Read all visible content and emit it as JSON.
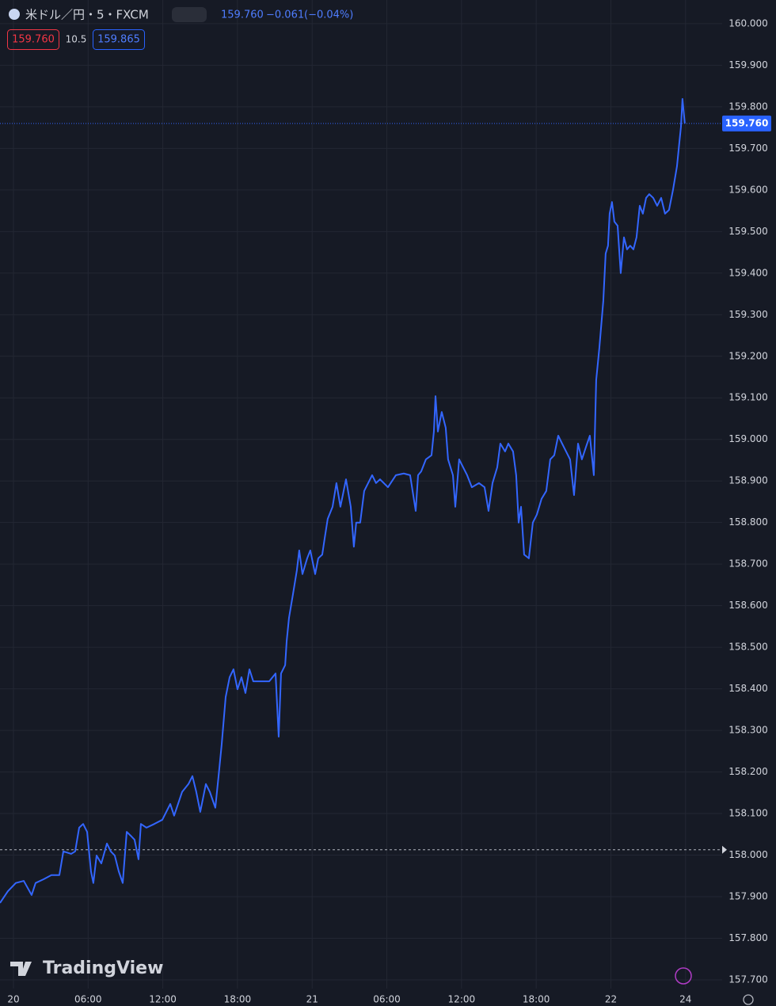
{
  "chart_data": {
    "type": "line",
    "symbol": "米ドル／円・5・FXCM",
    "last": "159.760",
    "change": "−0.061",
    "change_pct": "(−0.04%)",
    "bid": "159.760",
    "spread": "10.5",
    "ask": "159.865",
    "brand": "TradingView",
    "last_price": 159.76,
    "last_price_label": "159.760",
    "reference_level": 158.013,
    "line_color": "#3366ff",
    "grid": true,
    "xlim": [
      -1.08,
      56.94
    ],
    "ylim": [
      157.679,
      160.057
    ],
    "xticks": [
      {
        "value": 0,
        "label": "20"
      },
      {
        "value": 6,
        "label": "06:00"
      },
      {
        "value": 12,
        "label": "12:00"
      },
      {
        "value": 18,
        "label": "18:00"
      },
      {
        "value": 24,
        "label": "21"
      },
      {
        "value": 30,
        "label": "06:00"
      },
      {
        "value": 36,
        "label": "12:00"
      },
      {
        "value": 42,
        "label": "18:00"
      },
      {
        "value": 48,
        "label": "22"
      },
      {
        "value": 54,
        "label": "24"
      }
    ],
    "yticks": [
      {
        "value": 157.7,
        "label": "157.700"
      },
      {
        "value": 157.8,
        "label": "157.800"
      },
      {
        "value": 157.9,
        "label": "157.900"
      },
      {
        "value": 158.0,
        "label": "158.000"
      },
      {
        "value": 158.1,
        "label": "158.100"
      },
      {
        "value": 158.2,
        "label": "158.200"
      },
      {
        "value": 158.3,
        "label": "158.300"
      },
      {
        "value": 158.4,
        "label": "158.400"
      },
      {
        "value": 158.5,
        "label": "158.500"
      },
      {
        "value": 158.6,
        "label": "158.600"
      },
      {
        "value": 158.7,
        "label": "158.700"
      },
      {
        "value": 158.8,
        "label": "158.800"
      },
      {
        "value": 158.9,
        "label": "158.900"
      },
      {
        "value": 159.0,
        "label": "159.000"
      },
      {
        "value": 159.1,
        "label": "159.100"
      },
      {
        "value": 159.2,
        "label": "159.200"
      },
      {
        "value": 159.3,
        "label": "159.300"
      },
      {
        "value": 159.4,
        "label": "159.400"
      },
      {
        "value": 159.5,
        "label": "159.500"
      },
      {
        "value": 159.6,
        "label": "159.600"
      },
      {
        "value": 159.7,
        "label": "159.700"
      },
      {
        "value": 159.8,
        "label": "159.800"
      },
      {
        "value": 159.9,
        "label": "159.900"
      },
      {
        "value": 160.0,
        "label": "160.000"
      }
    ],
    "x": [
      -1.08,
      -0.45,
      0.19,
      0.83,
      1.46,
      1.78,
      2.42,
      3.05,
      3.69,
      4.01,
      4.64,
      4.96,
      5.28,
      5.6,
      5.92,
      6.23,
      6.42,
      6.68,
      7.06,
      7.51,
      7.82,
      8.14,
      8.46,
      8.78,
      9.1,
      9.41,
      9.73,
      10.05,
      10.24,
      10.69,
      11.32,
      11.96,
      12.6,
      12.91,
      13.55,
      14.06,
      14.38,
      14.69,
      15.01,
      15.46,
      15.78,
      16.22,
      16.48,
      16.73,
      17.05,
      17.37,
      17.68,
      18.0,
      18.32,
      18.64,
      18.96,
      19.27,
      19.91,
      20.55,
      21.06,
      21.31,
      21.5,
      21.83,
      21.95,
      22.14,
      22.46,
      22.77,
      22.96,
      23.22,
      23.6,
      23.85,
      24.24,
      24.49,
      24.81,
      25.0,
      25.25,
      25.64,
      25.95,
      26.27,
      26.72,
      27.1,
      27.35,
      27.54,
      27.86,
      28.18,
      28.5,
      28.82,
      29.13,
      29.45,
      30.09,
      30.73,
      31.36,
      31.87,
      32.32,
      32.51,
      32.76,
      33.14,
      33.59,
      33.78,
      33.91,
      34.1,
      34.41,
      34.73,
      34.92,
      35.31,
      35.5,
      35.81,
      36.13,
      36.45,
      36.83,
      37.4,
      37.85,
      38.17,
      38.49,
      38.87,
      39.12,
      39.5,
      39.76,
      40.14,
      40.39,
      40.59,
      40.78,
      41.03,
      41.41,
      41.73,
      42.05,
      42.43,
      42.81,
      43.13,
      43.45,
      43.77,
      44.08,
      44.4,
      44.72,
      45.04,
      45.36,
      45.67,
      45.99,
      46.31,
      46.63,
      46.82,
      47.07,
      47.39,
      47.58,
      47.77,
      47.9,
      48.09,
      48.28,
      48.54,
      48.79,
      49.05,
      49.3,
      49.55,
      49.81,
      50.06,
      50.32,
      50.57,
      50.83,
      51.08,
      51.4,
      51.72,
      52.04,
      52.35,
      52.67,
      52.99,
      53.31,
      53.5,
      53.63,
      53.75,
      53.94
    ],
    "values": [
      157.885,
      157.913,
      157.933,
      157.938,
      157.904,
      157.933,
      157.942,
      157.952,
      157.952,
      158.009,
      158.003,
      158.009,
      158.066,
      158.075,
      158.056,
      157.961,
      157.933,
      157.999,
      157.98,
      158.028,
      158.009,
      157.999,
      157.961,
      157.933,
      158.056,
      158.047,
      158.037,
      157.99,
      158.075,
      158.066,
      158.075,
      158.085,
      158.123,
      158.095,
      158.152,
      158.171,
      158.19,
      158.152,
      158.104,
      158.171,
      158.152,
      158.114,
      158.19,
      158.266,
      158.38,
      158.428,
      158.447,
      158.399,
      158.428,
      158.39,
      158.447,
      158.418,
      158.418,
      158.418,
      158.437,
      158.285,
      158.437,
      158.457,
      158.514,
      158.571,
      158.628,
      158.685,
      158.733,
      158.676,
      158.714,
      158.733,
      158.676,
      158.714,
      158.723,
      158.761,
      158.809,
      158.838,
      158.895,
      158.838,
      158.904,
      158.838,
      158.742,
      158.8,
      158.8,
      158.876,
      158.895,
      158.914,
      158.895,
      158.904,
      158.885,
      158.914,
      158.918,
      158.914,
      158.828,
      158.914,
      158.923,
      158.952,
      158.962,
      159.019,
      159.104,
      159.019,
      159.066,
      159.028,
      158.952,
      158.914,
      158.838,
      158.952,
      158.933,
      158.914,
      158.885,
      158.895,
      158.885,
      158.828,
      158.895,
      158.933,
      158.99,
      158.971,
      158.99,
      158.971,
      158.914,
      158.8,
      158.838,
      158.723,
      158.714,
      158.8,
      158.819,
      158.857,
      158.876,
      158.952,
      158.962,
      159.009,
      158.99,
      158.971,
      158.952,
      158.866,
      158.99,
      158.952,
      158.981,
      159.009,
      158.914,
      159.143,
      159.219,
      159.333,
      159.447,
      159.466,
      159.543,
      159.571,
      159.524,
      159.514,
      159.4,
      159.486,
      159.457,
      159.466,
      159.457,
      159.486,
      159.562,
      159.543,
      159.581,
      159.59,
      159.581,
      159.562,
      159.581,
      159.543,
      159.552,
      159.6,
      159.657,
      159.714,
      159.752,
      159.819,
      159.76
    ]
  }
}
